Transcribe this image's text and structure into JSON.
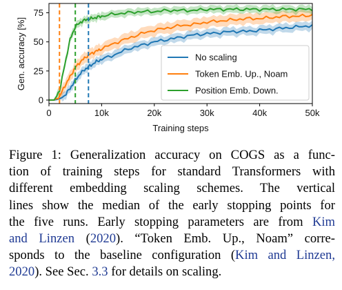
{
  "chart_data": {
    "type": "line",
    "xlabel": "Training steps",
    "ylabel": "Gen. accuracy [%]",
    "xlim": [
      0,
      50000
    ],
    "ylim": [
      -3,
      83
    ],
    "x_ticks": [
      0,
      10000,
      20000,
      30000,
      40000,
      50000
    ],
    "x_tick_labels": [
      "0",
      "10k",
      "20k",
      "30k",
      "40k",
      "50k"
    ],
    "y_ticks": [
      0,
      25,
      50,
      75
    ],
    "y_tick_labels": [
      "0",
      "25",
      "50",
      "75"
    ],
    "grid": false,
    "legend_position": "lower right",
    "series": [
      {
        "name": "No scaling",
        "color": "#1f77b4",
        "x": [
          0,
          1000,
          2000,
          3000,
          4000,
          5000,
          6000,
          7000,
          8000,
          9000,
          10000,
          12500,
          15000,
          17500,
          20000,
          22500,
          25000,
          27500,
          30000,
          32500,
          35000,
          37500,
          40000,
          42500,
          45000,
          47500,
          50000
        ],
        "values": [
          0,
          0,
          1,
          4,
          10,
          17,
          23,
          27,
          30,
          33,
          35,
          39,
          44,
          47,
          50,
          52,
          54,
          56,
          57,
          58,
          59,
          59,
          60,
          61,
          62,
          63,
          64
        ],
        "band": 3,
        "early_stop_median": 7500
      },
      {
        "name": "Token Emb. Up., Noam",
        "color": "#ff7f0e",
        "x": [
          0,
          1000,
          2000,
          3000,
          4000,
          5000,
          6000,
          7000,
          8000,
          9000,
          10000,
          12500,
          15000,
          17500,
          20000,
          22500,
          25000,
          27500,
          30000,
          32500,
          35000,
          37500,
          40000,
          42500,
          45000,
          47500,
          50000
        ],
        "values": [
          0,
          0,
          3,
          12,
          20,
          28,
          33,
          37,
          40,
          42,
          44,
          49,
          53,
          57,
          60,
          62,
          64,
          65,
          67,
          68,
          69,
          70,
          70,
          71,
          72,
          72,
          73
        ],
        "band": 4,
        "early_stop_median": 2000
      },
      {
        "name": "Position Emb. Down.",
        "color": "#2ca02c",
        "x": [
          0,
          1000,
          2000,
          3000,
          4000,
          5000,
          6000,
          7000,
          8000,
          9000,
          10000,
          12500,
          15000,
          17500,
          20000,
          22500,
          25000,
          27500,
          30000,
          32500,
          35000,
          37500,
          40000,
          42500,
          45000,
          47500,
          50000
        ],
        "values": [
          0,
          0,
          8,
          30,
          52,
          63,
          67,
          69,
          70,
          71,
          72,
          74,
          75,
          76,
          76,
          77,
          77,
          77,
          78,
          78,
          78,
          78,
          78,
          78,
          78,
          78,
          78
        ],
        "band": 2.5,
        "early_stop_median": 5000
      }
    ]
  },
  "caption": {
    "lines": [
      [
        {
          "text": "Figure 1: Generalization accuracy on COGS as a func-"
        }
      ],
      [
        {
          "text": "tion of training steps for standard Transformers with"
        }
      ],
      [
        {
          "text": "different embedding scaling schemes.  The vertical"
        }
      ],
      [
        {
          "text": "lines show the median of the early stopping points for"
        }
      ],
      [
        {
          "text": "the five runs. Early stopping parameters are from "
        },
        {
          "text": "Kim",
          "cite": true
        }
      ],
      [
        {
          "text": "and Linzen",
          "cite": true
        },
        {
          "text": " ("
        },
        {
          "text": "2020",
          "cite": true
        },
        {
          "text": ").  “Token Emb.  Up., Noam” corre-"
        }
      ],
      [
        {
          "text": "sponds to the baseline configuration ("
        },
        {
          "text": "Kim and Linzen,",
          "cite": true
        }
      ],
      [
        {
          "text": "2020",
          "cite": true
        },
        {
          "text": "). See Sec. "
        },
        {
          "text": "3.3",
          "cite": true
        },
        {
          "text": " for details on scaling."
        }
      ]
    ]
  }
}
